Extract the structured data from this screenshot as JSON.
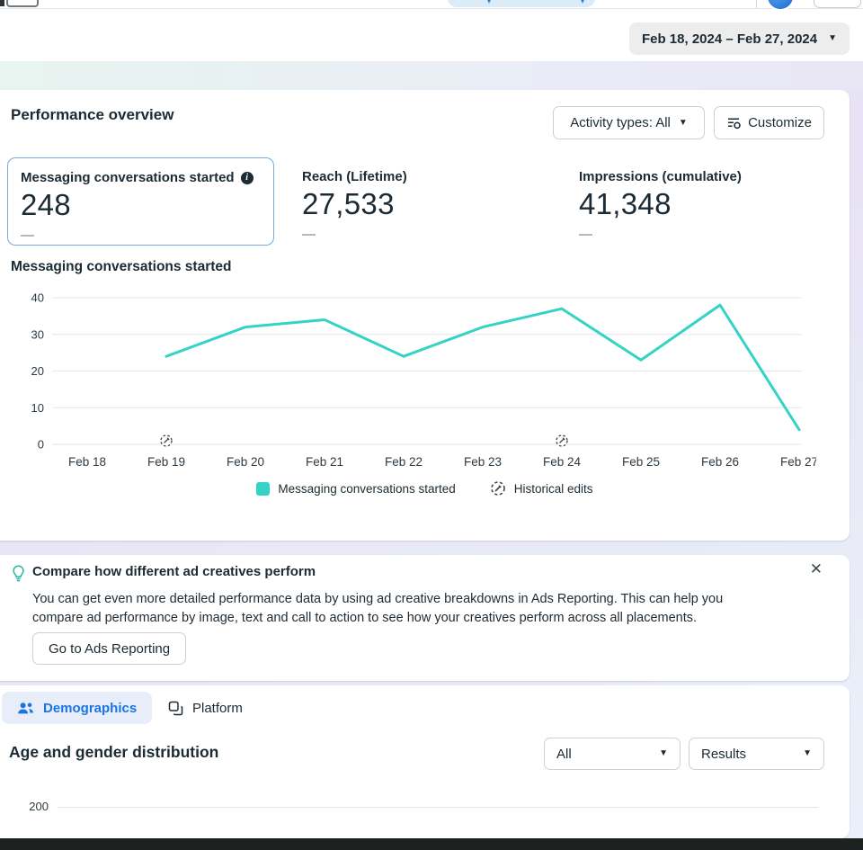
{
  "icons": {
    "caret_down": "▼",
    "close": "✕",
    "info": "i",
    "pill_mark": "▾"
  },
  "header": {
    "date_range": "Feb 18, 2024 – Feb 27, 2024"
  },
  "performance": {
    "title": "Performance overview",
    "activity_filter_label": "Activity types: All",
    "customize_label": "Customize",
    "metrics": [
      {
        "label": "Messaging conversations started",
        "value": "248",
        "delta": "—"
      },
      {
        "label": "Reach (Lifetime)",
        "value": "27,533",
        "delta": "—"
      },
      {
        "label": "Impressions (cumulative)",
        "value": "41,348",
        "delta": "—"
      }
    ],
    "chart_title": "Messaging conversations started",
    "legend": [
      {
        "label": "Messaging conversations started",
        "swatch_color": "#35d3c5"
      },
      {
        "label": "Historical edits"
      }
    ]
  },
  "chart_data": [
    {
      "type": "line",
      "title": "Messaging conversations started",
      "x": [
        "Feb 18",
        "Feb 19",
        "Feb 20",
        "Feb 21",
        "Feb 22",
        "Feb 23",
        "Feb 24",
        "Feb 25",
        "Feb 26",
        "Feb 27"
      ],
      "series": [
        {
          "name": "Messaging conversations started",
          "values": [
            null,
            24,
            32,
            34,
            24,
            32,
            37,
            23,
            38,
            4
          ],
          "color": "#35d3c5"
        }
      ],
      "ylim": [
        0,
        40
      ],
      "yticks": [
        0,
        10,
        20,
        30,
        40
      ],
      "grid": true,
      "legend_position": "bottom",
      "historical_edit_marks": [
        "Feb 19",
        "Feb 24"
      ]
    },
    {
      "type": "bar",
      "title": "Age and gender distribution",
      "visible_yticks": [
        "200"
      ],
      "note": "chart clipped at bottom edge of screenshot"
    }
  ],
  "banner": {
    "title": "Compare how different ad creatives perform",
    "body": "You can get even more detailed performance data by using ad creative breakdowns in Ads Reporting. This can help you compare ad performance by image, text and call to action to see how your creatives perform across all placements.",
    "button_label": "Go to Ads Reporting"
  },
  "breakdown": {
    "tabs": [
      {
        "label": "Demographics",
        "active": true
      },
      {
        "label": "Platform",
        "active": false
      }
    ],
    "section_title": "Age and gender distribution",
    "filters": [
      {
        "value": "All"
      },
      {
        "value": "Results"
      }
    ]
  }
}
